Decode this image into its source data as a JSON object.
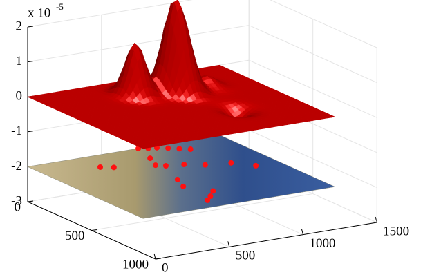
{
  "chart_data": {
    "type": "surface3d",
    "z_exponent": {
      "base": "x 10",
      "power": "-5"
    },
    "xlim": [
      0,
      1500
    ],
    "xticks": [
      0,
      500,
      1000,
      1500
    ],
    "ylim": [
      0,
      1000
    ],
    "yticks": [
      0,
      500,
      1000
    ],
    "zlim": [
      -3,
      2
    ],
    "zticks": [
      -3,
      -2,
      -1,
      0,
      1,
      2
    ],
    "grid": true,
    "surface": {
      "color": "#e00000",
      "x": [
        780,
        550,
        810,
        1000,
        900
      ],
      "y": [
        223,
        210,
        296,
        250,
        600
      ],
      "z": [
        2.0,
        1.5,
        1.4,
        0.3,
        -0.3
      ]
    },
    "map_level": -2,
    "points": {
      "color": "#ff1010",
      "x": [
        750,
        800,
        850,
        900,
        950,
        1000,
        700,
        695,
        650,
        355,
        420,
        1141,
        1050,
        553,
        600,
        520,
        580,
        650,
        900,
        800
      ],
      "y": [
        0,
        20,
        30,
        60,
        90,
        120,
        150,
        279,
        250,
        158,
        190,
        468,
        380,
        579,
        480,
        806,
        760,
        700,
        350,
        300
      ]
    }
  }
}
